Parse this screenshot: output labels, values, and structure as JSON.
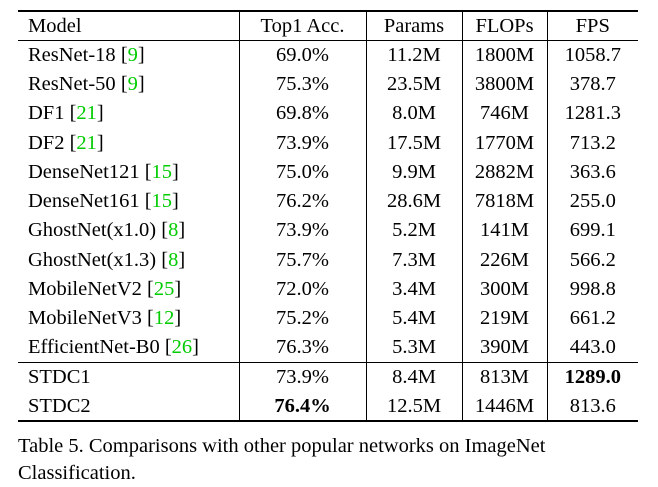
{
  "table": {
    "headers": [
      "Model",
      "Top1 Acc.",
      "Params",
      "FLOPs",
      "FPS"
    ],
    "rows": [
      {
        "model": "ResNet-18",
        "cite": "9",
        "top1": "69.0%",
        "params": "11.2M",
        "flops": "1800M",
        "fps": "1058.7"
      },
      {
        "model": "ResNet-50",
        "cite": "9",
        "top1": "75.3%",
        "params": "23.5M",
        "flops": "3800M",
        "fps": "378.7"
      },
      {
        "model": "DF1",
        "cite": "21",
        "top1": "69.8%",
        "params": "8.0M",
        "flops": "746M",
        "fps": "1281.3"
      },
      {
        "model": "DF2",
        "cite": "21",
        "top1": "73.9%",
        "params": "17.5M",
        "flops": "1770M",
        "fps": "713.2"
      },
      {
        "model": "DenseNet121",
        "cite": "15",
        "top1": "75.0%",
        "params": "9.9M",
        "flops": "2882M",
        "fps": "363.6"
      },
      {
        "model": "DenseNet161",
        "cite": "15",
        "top1": "76.2%",
        "params": "28.6M",
        "flops": "7818M",
        "fps": "255.0"
      },
      {
        "model": "GhostNet(x1.0)",
        "cite": "8",
        "top1": "73.9%",
        "params": "5.2M",
        "flops": "141M",
        "fps": "699.1"
      },
      {
        "model": "GhostNet(x1.3)",
        "cite": "8",
        "top1": "75.7%",
        "params": "7.3M",
        "flops": "226M",
        "fps": "566.2"
      },
      {
        "model": "MobileNetV2",
        "cite": "25",
        "top1": "72.0%",
        "params": "3.4M",
        "flops": "300M",
        "fps": "998.8"
      },
      {
        "model": "MobileNetV3",
        "cite": "12",
        "top1": "75.2%",
        "params": "5.4M",
        "flops": "219M",
        "fps": "661.2"
      },
      {
        "model": "EfficientNet-B0",
        "cite": "26",
        "top1": "76.3%",
        "params": "5.3M",
        "flops": "390M",
        "fps": "443.0"
      }
    ],
    "ours": [
      {
        "model": "STDC1",
        "top1": "73.9%",
        "params": "8.4M",
        "flops": "813M",
        "fps": "1289.0",
        "top1_bold": false,
        "fps_bold": true
      },
      {
        "model": "STDC2",
        "top1": "76.4%",
        "params": "12.5M",
        "flops": "1446M",
        "fps": "813.6",
        "top1_bold": true,
        "fps_bold": false
      }
    ]
  },
  "caption": "Table 5. Comparisons with other popular networks on ImageNet Classification.",
  "colors": {
    "citation": "#00cc00",
    "text": "#000000"
  }
}
